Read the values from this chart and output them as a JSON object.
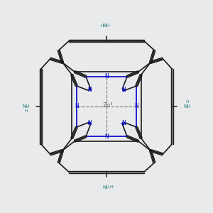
{
  "bg_color": "#e8eaec",
  "bond_color": "#1a1a1a",
  "N_color": "#0000cc",
  "NH2_color": "#2a8080",
  "Zn_color": "#666666",
  "dashed_color": "#888888",
  "figsize": [
    3.0,
    3.0
  ],
  "dpi": 100,
  "xlim": [
    -1.0,
    1.0
  ],
  "ylim": [
    -1.0,
    1.0
  ]
}
